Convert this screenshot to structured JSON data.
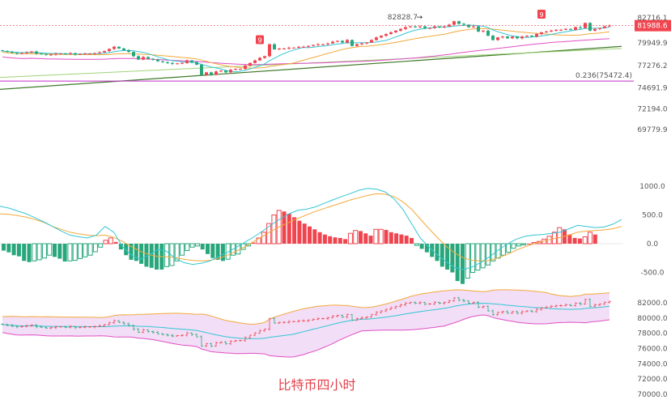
{
  "chart_data": {
    "type": "candlestick",
    "caption": "比特币四小时",
    "colors": {
      "up": "#f0454f",
      "down": "#27a77b",
      "ma_fast": "#33c6d4",
      "ma_mid": "#f3a93b",
      "ma_slow": "#e04fc5",
      "ma_long": "#9fd27a",
      "trendline": "#3f7a2a",
      "fib": "#c42ec9",
      "band_fill": "#f0d8f4",
      "band_upper": "#f3a93b",
      "band_mid": "#33c6d4",
      "band_lower": "#e04fc5",
      "price_tag": "#f0454f"
    },
    "price_panel": {
      "ticks": [
        "82716.1",
        "79949.9",
        "77276.2",
        "74691.9",
        "72194.0",
        "69779.9"
      ],
      "current_price": "81988.6",
      "high_label": "82828.7",
      "fib_label": "0.236(75472.4)",
      "nine_markers": [
        "9",
        "9"
      ],
      "closes": [
        79000,
        78900,
        78800,
        78700,
        78750,
        78850,
        78950,
        78700,
        78650,
        78550,
        78600,
        78700,
        78700,
        78650,
        78750,
        78600,
        78650,
        78700,
        78700,
        78750,
        78850,
        79000,
        79250,
        79500,
        79300,
        79100,
        78900,
        78400,
        78000,
        78300,
        78100,
        78000,
        77800,
        77700,
        77600,
        77500,
        77550,
        77600,
        77900,
        77700,
        77400,
        76200,
        76500,
        76200,
        76600,
        76700,
        76500,
        76800,
        76900,
        76900,
        77300,
        77600,
        77900,
        78200,
        78400,
        79800,
        79200,
        79300,
        79300,
        79400,
        79400,
        79500,
        79500,
        79600,
        79700,
        79800,
        79800,
        79900,
        80100,
        80200,
        80000,
        80300,
        79600,
        79800,
        79900,
        80000,
        80300,
        80600,
        80800,
        81000,
        81200,
        81400,
        81600,
        81800,
        81900,
        81800,
        81900,
        81700,
        81700,
        81900,
        81800,
        81900,
        82100,
        82500,
        82200,
        82100,
        81800,
        81900,
        81300,
        81400,
        80800,
        80300,
        80600,
        80700,
        80500,
        80700,
        80500,
        80700,
        80800,
        80700,
        81000,
        81200,
        81300,
        81400,
        81500,
        81500,
        81600,
        81500,
        81800,
        81700,
        82300,
        81400,
        81600,
        81700,
        81900,
        82000
      ]
    },
    "macd_panel": {
      "ticks": [
        "1000.0",
        "500.0",
        "0.0",
        "-500.0"
      ],
      "histogram": [
        -120,
        -150,
        -200,
        -220,
        -300,
        -320,
        -300,
        -280,
        -250,
        -200,
        -230,
        -260,
        -310,
        -300,
        -290,
        -260,
        -230,
        -200,
        -140,
        -60,
        60,
        100,
        30,
        -100,
        -200,
        -280,
        -300,
        -350,
        -400,
        -420,
        -450,
        -450,
        -400,
        -380,
        -300,
        -200,
        -120,
        -60,
        -40,
        -100,
        -180,
        -250,
        -280,
        -300,
        -270,
        -200,
        -180,
        -100,
        -40,
        20,
        100,
        200,
        350,
        500,
        580,
        560,
        520,
        460,
        400,
        350,
        300,
        250,
        200,
        160,
        130,
        110,
        100,
        80,
        180,
        230,
        220,
        180,
        140,
        250,
        250,
        240,
        200,
        180,
        160,
        140,
        100,
        -30,
        -90,
        -150,
        -230,
        -300,
        -400,
        -450,
        -500,
        -650,
        -700,
        -600,
        -500,
        -460,
        -420,
        -370,
        -300,
        -250,
        -200,
        -150,
        -80,
        -40,
        -20,
        0,
        20,
        40,
        80,
        130,
        200,
        280,
        250,
        160,
        100,
        90,
        120,
        200,
        160
      ],
      "dif": [
        650,
        620,
        570,
        520,
        450,
        380,
        300,
        220,
        150,
        120,
        100,
        150,
        300,
        200,
        -50,
        -200,
        -270,
        -200,
        -100,
        -130,
        -250,
        -330,
        -360,
        -340,
        -300,
        -220,
        -150,
        -60,
        30,
        120,
        220,
        330,
        430,
        520,
        580,
        600,
        640,
        700,
        760,
        820,
        870,
        930,
        960,
        950,
        900,
        780,
        600,
        350,
        100,
        -60,
        -200,
        -320,
        -420,
        -450,
        -400,
        -320,
        -220,
        -100,
        0,
        80,
        130,
        150,
        160,
        180,
        200,
        260,
        320,
        300,
        280,
        290,
        340,
        420
      ],
      "dea": [
        520,
        510,
        490,
        460,
        420,
        370,
        300,
        250,
        200,
        170,
        150,
        140,
        150,
        110,
        40,
        -50,
        -130,
        -190,
        -220,
        -230,
        -240,
        -270,
        -290,
        -300,
        -290,
        -250,
        -200,
        -130,
        -50,
        40,
        130,
        220,
        300,
        370,
        440,
        500,
        560,
        610,
        660,
        710,
        760,
        800,
        840,
        870,
        860,
        820,
        730,
        600,
        430,
        260,
        100,
        -50,
        -170,
        -250,
        -290,
        -300,
        -290,
        -240,
        -180,
        -110,
        -50,
        0,
        40,
        80,
        110,
        150,
        200,
        220,
        230,
        240,
        260,
        300
      ]
    },
    "boll_panel": {
      "ticks": [
        "82000.0",
        "80000.0",
        "78000.0",
        "76000.0",
        "74000.0",
        "72000.0",
        "70000.0"
      ]
    }
  }
}
